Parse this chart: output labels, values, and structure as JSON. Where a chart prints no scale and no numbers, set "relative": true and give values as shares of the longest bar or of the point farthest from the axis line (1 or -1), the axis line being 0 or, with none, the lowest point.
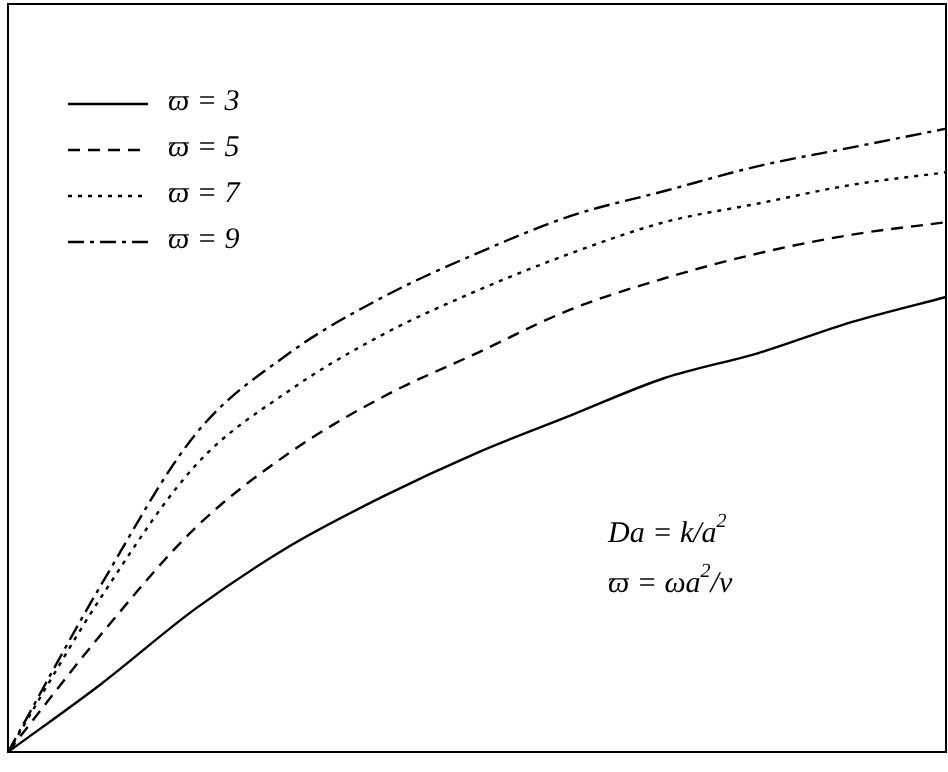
{
  "chart_data": {
    "type": "line",
    "relative": true,
    "tick_labels": false,
    "legend": "top left",
    "marker": "none",
    "categories": [
      null,
      null,
      null,
      null,
      null,
      null,
      null,
      null,
      null,
      null,
      null
    ],
    "series": [
      {
        "name": "ϖ = 3",
        "color": "#000000",
        "line_style": "solid",
        "values": [
          0,
          0.11,
          0.23,
          0.33,
          0.41,
          0.48,
          0.54,
          0.6,
          0.64,
          0.69,
          0.73
        ]
      },
      {
        "name": "ϖ = 5",
        "color": "#000000",
        "line_style": "dashed",
        "values": [
          0,
          0.19,
          0.36,
          0.48,
          0.57,
          0.64,
          0.71,
          0.76,
          0.8,
          0.83,
          0.85
        ]
      },
      {
        "name": "ϖ = 7",
        "color": "#000000",
        "line_style": "dotted",
        "values": [
          0,
          0.25,
          0.46,
          0.58,
          0.67,
          0.74,
          0.8,
          0.85,
          0.88,
          0.91,
          0.93
        ]
      },
      {
        "name": "ϖ = 9",
        "color": "#000000",
        "line_style": "dashdot",
        "values": [
          0,
          0.27,
          0.51,
          0.64,
          0.73,
          0.8,
          0.86,
          0.9,
          0.94,
          0.97,
          1
        ]
      }
    ],
    "annotations": [
      "Da = k/a$^{2}$",
      "ϖ = ωa$^{2}$/ν"
    ]
  }
}
